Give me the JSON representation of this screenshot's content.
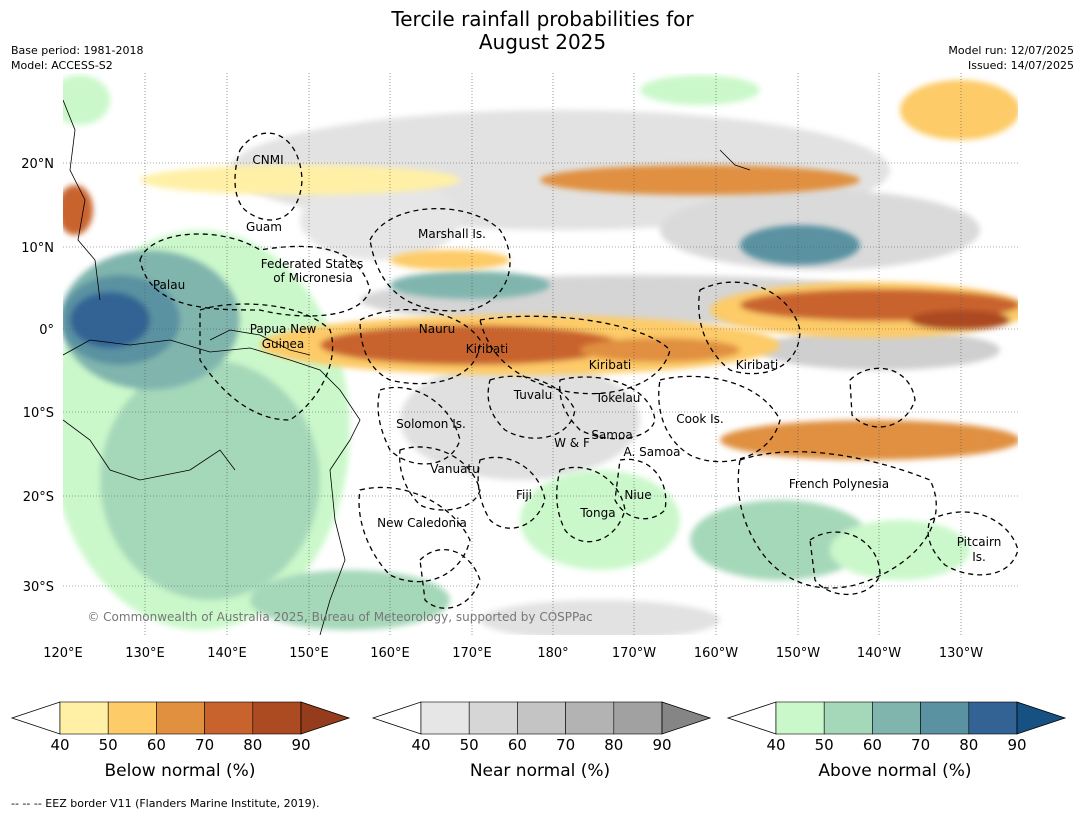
{
  "title_line1": "Tercile rainfall probabilities for",
  "title_line2": "August 2025",
  "base_period": "Base period: 1981-2018",
  "model": "Model: ACCESS-S2",
  "model_run": "Model run: 12/07/2025",
  "issued": "Issued: 14/07/2025",
  "copyright": "© Commonwealth of Australia 2025, Bureau of Meteorology, supported by COSPPac",
  "footnote": "-- -- -- EEZ border V11 (Flanders Marine Institute, 2019).",
  "lon_labels": [
    "120°E",
    "130°E",
    "140°E",
    "150°E",
    "160°E",
    "170°E",
    "180°",
    "170°W",
    "160°W",
    "150°W",
    "140°W",
    "130°W"
  ],
  "lat_labels": [
    "20°N",
    "10°N",
    "0°",
    "10°S",
    "20°S",
    "30°S"
  ],
  "region_labels": {
    "cnmi": "CNMI",
    "guam": "Guam",
    "marshall": "Marshall Is.",
    "fsm1": "Federated States",
    "fsm2": "of Micronesia",
    "palau": "Palau",
    "png1": "Papua New",
    "png2": "Guinea",
    "nauru": "Nauru",
    "kiribati_w": "Kiribati",
    "kiribati_c": "Kiribati",
    "kiribati_e": "Kiribati",
    "tuvalu": "Tuvalu",
    "tokelau": "Tokelau",
    "cook": "Cook Is.",
    "solomon": "Solomon Is.",
    "wf": "W & F",
    "samoa": "Samoa",
    "asamoa": "A. Samoa",
    "vanuatu": "Vanuatu",
    "fiji": "Fiji",
    "niue": "Niue",
    "tonga": "Tonga",
    "newcal": "New Caledonia",
    "frpoly": "French Polynesia",
    "pitcairn1": "Pitcairn",
    "pitcairn2": "Is."
  },
  "colorbars": [
    {
      "title": "Below normal (%)",
      "ticks": [
        "40",
        "50",
        "60",
        "70",
        "80",
        "90"
      ],
      "colors": [
        "#ffffff",
        "#fff0a6",
        "#fdcb67",
        "#e0903f",
        "#c9632e",
        "#ac4a22",
        "#953c1c"
      ]
    },
    {
      "title": "Near normal (%)",
      "ticks": [
        "40",
        "50",
        "60",
        "70",
        "80",
        "90"
      ],
      "colors": [
        "#ffffff",
        "#e6e6e6",
        "#d6d6d6",
        "#c4c4c4",
        "#b3b3b3",
        "#a1a1a1",
        "#858585"
      ]
    },
    {
      "title": "Above normal (%)",
      "ticks": [
        "40",
        "50",
        "60",
        "70",
        "80",
        "90"
      ],
      "colors": [
        "#ffffff",
        "#cbf8cb",
        "#a5d8b9",
        "#80b5ae",
        "#5a92a1",
        "#326394",
        "#175083"
      ]
    }
  ]
}
